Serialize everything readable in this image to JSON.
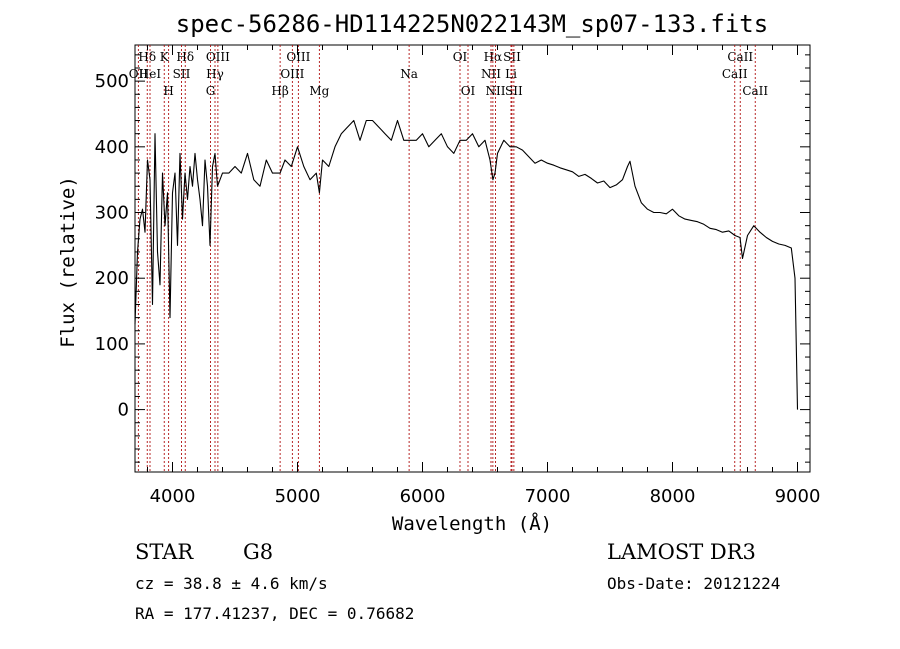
{
  "chart_data": {
    "type": "line",
    "title": "spec-56286-HD114225N022143M_sp07-133.fits",
    "xlabel": "Wavelength (Å)",
    "ylabel": "Flux (relative)",
    "xlim": [
      3700,
      9100
    ],
    "ylim": [
      -95,
      555
    ],
    "xticks": [
      4000,
      5000,
      6000,
      7000,
      8000,
      9000
    ],
    "yticks": [
      0,
      100,
      200,
      300,
      400,
      500
    ],
    "grid": false,
    "series": [
      {
        "name": "spectrum",
        "x": [
          3700,
          3720,
          3740,
          3760,
          3780,
          3800,
          3820,
          3840,
          3860,
          3880,
          3900,
          3920,
          3940,
          3960,
          3980,
          4000,
          4020,
          4040,
          4060,
          4080,
          4100,
          4120,
          4140,
          4160,
          4180,
          4200,
          4220,
          4240,
          4260,
          4280,
          4300,
          4320,
          4340,
          4360,
          4380,
          4400,
          4450,
          4500,
          4550,
          4600,
          4650,
          4700,
          4750,
          4800,
          4861,
          4900,
          4950,
          5000,
          5050,
          5100,
          5150,
          5175,
          5200,
          5250,
          5300,
          5350,
          5400,
          5450,
          5500,
          5550,
          5600,
          5650,
          5700,
          5750,
          5800,
          5850,
          5893,
          5950,
          6000,
          6050,
          6100,
          6150,
          6200,
          6250,
          6300,
          6350,
          6400,
          6450,
          6500,
          6540,
          6563,
          6580,
          6600,
          6650,
          6700,
          6750,
          6800,
          6850,
          6900,
          6950,
          7000,
          7050,
          7100,
          7150,
          7200,
          7250,
          7300,
          7350,
          7400,
          7450,
          7500,
          7550,
          7600,
          7640,
          7660,
          7700,
          7750,
          7800,
          7850,
          7900,
          7950,
          8000,
          8050,
          8100,
          8150,
          8200,
          8250,
          8300,
          8350,
          8400,
          8450,
          8500,
          8540,
          8560,
          8600,
          8650,
          8700,
          8750,
          8800,
          8850,
          8900,
          8950,
          8980,
          9000
        ],
        "y": [
          130,
          240,
          290,
          305,
          270,
          380,
          350,
          160,
          420,
          240,
          190,
          360,
          280,
          330,
          140,
          330,
          360,
          250,
          390,
          290,
          360,
          320,
          370,
          340,
          390,
          350,
          320,
          280,
          380,
          340,
          250,
          370,
          390,
          340,
          350,
          360,
          360,
          370,
          360,
          390,
          350,
          340,
          380,
          360,
          360,
          380,
          370,
          400,
          370,
          350,
          360,
          330,
          380,
          370,
          400,
          420,
          430,
          440,
          410,
          440,
          440,
          430,
          420,
          410,
          440,
          410,
          410,
          410,
          420,
          400,
          410,
          420,
          400,
          390,
          410,
          410,
          420,
          400,
          410,
          380,
          350,
          360,
          390,
          410,
          400,
          400,
          395,
          385,
          375,
          380,
          375,
          372,
          368,
          365,
          362,
          355,
          358,
          352,
          345,
          348,
          338,
          342,
          350,
          370,
          378,
          340,
          315,
          305,
          300,
          300,
          298,
          305,
          295,
          290,
          288,
          286,
          282,
          276,
          274,
          270,
          272,
          265,
          262,
          230,
          265,
          280,
          270,
          262,
          256,
          252,
          250,
          246,
          200,
          0
        ]
      }
    ],
    "lines": [
      {
        "label": "Hδ",
        "x": 3798,
        "row": 1
      },
      {
        "label": "OII",
        "x": 3727,
        "row": 2
      },
      {
        "label": "HeI",
        "x": 3820,
        "row": 2
      },
      {
        "label": "K",
        "x": 3934,
        "row": 1
      },
      {
        "label": "H",
        "x": 3969,
        "row": 3
      },
      {
        "label": "SII",
        "x": 4072,
        "row": 2
      },
      {
        "label": "Hδ",
        "x": 4102,
        "row": 1
      },
      {
        "label": "OIII",
        "x": 4363,
        "row": 1
      },
      {
        "label": "Hγ",
        "x": 4340,
        "row": 2
      },
      {
        "label": "G",
        "x": 4304,
        "row": 3
      },
      {
        "label": "OIII",
        "x": 5007,
        "row": 1
      },
      {
        "label": "OIII",
        "x": 4959,
        "row": 2
      },
      {
        "label": "Hβ",
        "x": 4861,
        "row": 3
      },
      {
        "label": "Mg",
        "x": 5175,
        "row": 3
      },
      {
        "label": "Na",
        "x": 5893,
        "row": 2
      },
      {
        "label": "OI",
        "x": 6300,
        "row": 1
      },
      {
        "label": "OI",
        "x": 6364,
        "row": 3
      },
      {
        "label": "Hα",
        "x": 6563,
        "row": 1
      },
      {
        "label": "SII",
        "x": 6716,
        "row": 1
      },
      {
        "label": "NII",
        "x": 6548,
        "row": 2
      },
      {
        "label": "Li",
        "x": 6708,
        "row": 2
      },
      {
        "label": "NII",
        "x": 6584,
        "row": 3
      },
      {
        "label": "SII",
        "x": 6731,
        "row": 3
      },
      {
        "label": "CaII",
        "x": 8542,
        "row": 1
      },
      {
        "label": "CaII",
        "x": 8498,
        "row": 2
      },
      {
        "label": "CaII",
        "x": 8662,
        "row": 3
      }
    ]
  },
  "info": {
    "object_class": "STAR",
    "subclass": "G8",
    "survey": "LAMOST DR3",
    "redshift": "cz = 38.8 ± 4.6 km/s",
    "obs_date": "Obs-Date: 20121224",
    "coords": "RA = 177.41237, DEC =    0.76682"
  },
  "colors": {
    "spectrum": "#000000",
    "line_marker": "#b01010",
    "axes": "#000000"
  }
}
